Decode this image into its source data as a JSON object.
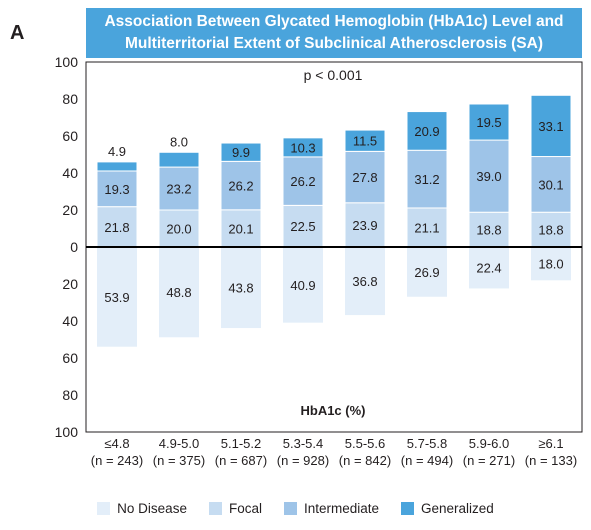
{
  "panel_label": "A",
  "title_line1": "Association Between Glycated Hemoglobin (HbA1c) Level and",
  "title_line2": "Multiterritorial Extent of Subclinical Atherosclerosis  (SA)",
  "colors": {
    "no_disease": "#e3eef9",
    "focal": "#c6dcf1",
    "intermediate": "#9ec4e8",
    "generalized": "#4aa4dc",
    "title_bg": "#4aa4dc"
  },
  "chart_data": {
    "type": "bar",
    "title": "Association Between Glycated Hemoglobin (HbA1c) Level and Multiterritorial Extent of Subclinical Atherosclerosis  (SA)",
    "annotation": "p < 0.001",
    "xlabel": "HbA1c (%)",
    "ylabel": "",
    "ylim_up": [
      0,
      100
    ],
    "ylim_down": [
      0,
      100
    ],
    "yticks_up": [
      "100",
      "80",
      "60",
      "40",
      "20",
      "0"
    ],
    "yticks_down": [
      "20",
      "40",
      "60",
      "80",
      "100"
    ],
    "categories": [
      "≤4.8",
      "4.9-5.0",
      "5.1-5.2",
      "5.3-5.4",
      "5.5-5.6",
      "5.7-5.8",
      "5.9-6.0",
      "≥6.1"
    ],
    "category_n": [
      "(n = 243)",
      "(n = 375)",
      "(n = 687)",
      "(n = 928)",
      "(n = 842)",
      "(n = 494)",
      "(n = 271)",
      "(n = 133)"
    ],
    "series": [
      {
        "name": "No Disease",
        "direction": "down",
        "values": [
          53.9,
          48.8,
          43.8,
          40.9,
          36.8,
          26.9,
          22.4,
          18.0
        ],
        "labels": [
          "53.9",
          "48.8",
          "43.8",
          "40.9",
          "36.8",
          "26.9",
          "22.4",
          "18.0"
        ]
      },
      {
        "name": "Focal",
        "direction": "up",
        "values": [
          21.8,
          20.0,
          20.1,
          22.5,
          23.9,
          21.1,
          18.8,
          18.8
        ],
        "labels": [
          "21.8",
          "20.0",
          "20.1",
          "22.5",
          "23.9",
          "21.1",
          "18.8",
          "18.8"
        ]
      },
      {
        "name": "Intermediate",
        "direction": "up",
        "values": [
          19.3,
          23.2,
          26.2,
          26.2,
          27.8,
          31.2,
          39.0,
          30.1
        ],
        "labels": [
          "19.3",
          "23.2",
          "26.2",
          "26.2",
          "27.8",
          "31.2",
          "39.0",
          "30.1"
        ]
      },
      {
        "name": "Generalized",
        "direction": "up",
        "values": [
          4.9,
          8.0,
          9.9,
          10.3,
          11.5,
          20.9,
          19.5,
          33.1
        ],
        "labels": [
          "4.9",
          "8.0",
          "9.9",
          "10.3",
          "11.5",
          "20.9",
          "19.5",
          "33.1"
        ]
      }
    ],
    "legend": [
      "No Disease",
      "Focal",
      "Intermediate",
      "Generalized"
    ],
    "legend_position": "bottom",
    "grid": false
  }
}
